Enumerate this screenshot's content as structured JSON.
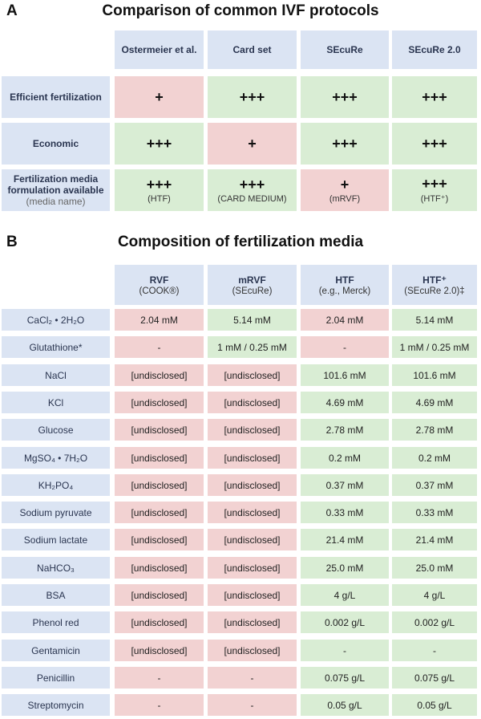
{
  "panel_a": {
    "letter": "A",
    "title": "Comparison of common IVF protocols",
    "columns": [
      "Ostermeier et al.",
      "Card set",
      "SEcuRe",
      "SEcuRe 2.0"
    ],
    "rows": [
      {
        "label": "Efficient fertilization",
        "cells": [
          {
            "mark": "+",
            "media": "",
            "color": "red"
          },
          {
            "mark": "+++",
            "media": "",
            "color": "green"
          },
          {
            "mark": "+++",
            "media": "",
            "color": "green"
          },
          {
            "mark": "+++",
            "media": "",
            "color": "green"
          }
        ]
      },
      {
        "label": "Economic",
        "cells": [
          {
            "mark": "+++",
            "media": "",
            "color": "green"
          },
          {
            "mark": "+",
            "media": "",
            "color": "red"
          },
          {
            "mark": "+++",
            "media": "",
            "color": "green"
          },
          {
            "mark": "+++",
            "media": "",
            "color": "green"
          }
        ]
      },
      {
        "label": "Fertilization media formulation available",
        "label_sub": "(media name)",
        "cells": [
          {
            "mark": "+++",
            "media": "(HTF)",
            "color": "green"
          },
          {
            "mark": "+++",
            "media": "(CARD MEDIUM)",
            "color": "green"
          },
          {
            "mark": "+",
            "media": "(mRVF)",
            "color": "red"
          },
          {
            "mark": "+++",
            "media": "(HTF⁺)",
            "color": "green"
          }
        ]
      }
    ]
  },
  "panel_b": {
    "letter": "B",
    "title": "Composition of fertilization media",
    "columns": [
      {
        "name": "RVF",
        "sub": "(COOK®)"
      },
      {
        "name": "mRVF",
        "sub": "(SEcuRe)"
      },
      {
        "name": "HTF",
        "sub": "(e.g., Merck)"
      },
      {
        "name": "HTF⁺",
        "sub": "(SEcuRe 2.0)‡"
      }
    ],
    "rows": [
      {
        "label": "CaCl₂ • 2H₂O",
        "cells": [
          [
            "2.04 mM",
            "red"
          ],
          [
            "5.14 mM",
            "green"
          ],
          [
            "2.04 mM",
            "red"
          ],
          [
            "5.14 mM",
            "green"
          ]
        ]
      },
      {
        "label": "Glutathione*",
        "cells": [
          [
            "-",
            "red"
          ],
          [
            "1 mM / 0.25 mM",
            "green"
          ],
          [
            "-",
            "red"
          ],
          [
            "1 mM / 0.25 mM",
            "green"
          ]
        ]
      },
      {
        "label": "NaCl",
        "cells": [
          [
            "[undisclosed]",
            "red"
          ],
          [
            "[undisclosed]",
            "red"
          ],
          [
            "101.6 mM",
            "green"
          ],
          [
            "101.6 mM",
            "green"
          ]
        ]
      },
      {
        "label": "KCl",
        "cells": [
          [
            "[undisclosed]",
            "red"
          ],
          [
            "[undisclosed]",
            "red"
          ],
          [
            "4.69 mM",
            "green"
          ],
          [
            "4.69 mM",
            "green"
          ]
        ]
      },
      {
        "label": "Glucose",
        "cells": [
          [
            "[undisclosed]",
            "red"
          ],
          [
            "[undisclosed]",
            "red"
          ],
          [
            "2.78 mM",
            "green"
          ],
          [
            "2.78 mM",
            "green"
          ]
        ]
      },
      {
        "label": "MgSO₄ • 7H₂O",
        "cells": [
          [
            "[undisclosed]",
            "red"
          ],
          [
            "[undisclosed]",
            "red"
          ],
          [
            "0.2 mM",
            "green"
          ],
          [
            "0.2  mM",
            "green"
          ]
        ]
      },
      {
        "label": "KH₂PO₄",
        "cells": [
          [
            "[undisclosed]",
            "red"
          ],
          [
            "[undisclosed]",
            "red"
          ],
          [
            "0.37 mM",
            "green"
          ],
          [
            "0.37 mM",
            "green"
          ]
        ]
      },
      {
        "label": "Sodium pyruvate",
        "cells": [
          [
            "[undisclosed]",
            "red"
          ],
          [
            "[undisclosed]",
            "red"
          ],
          [
            "0.33 mM",
            "green"
          ],
          [
            "0.33 mM",
            "green"
          ]
        ]
      },
      {
        "label": "Sodium lactate",
        "cells": [
          [
            "[undisclosed]",
            "red"
          ],
          [
            "[undisclosed]",
            "red"
          ],
          [
            "21.4 mM",
            "green"
          ],
          [
            "21.4 mM",
            "green"
          ]
        ]
      },
      {
        "label": "NaHCO₃",
        "cells": [
          [
            "[undisclosed]",
            "red"
          ],
          [
            "[undisclosed]",
            "red"
          ],
          [
            "25.0 mM",
            "green"
          ],
          [
            "25.0 mM",
            "green"
          ]
        ]
      },
      {
        "label": "BSA",
        "cells": [
          [
            "[undisclosed]",
            "red"
          ],
          [
            "[undisclosed]",
            "red"
          ],
          [
            "4 g/L",
            "green"
          ],
          [
            "4 g/L",
            "green"
          ]
        ]
      },
      {
        "label": "Phenol red",
        "cells": [
          [
            "[undisclosed]",
            "red"
          ],
          [
            "[undisclosed]",
            "red"
          ],
          [
            "0.002 g/L",
            "green"
          ],
          [
            "0.002 g/L",
            "green"
          ]
        ]
      },
      {
        "label": "Gentamicin",
        "cells": [
          [
            "[undisclosed]",
            "red"
          ],
          [
            "[undisclosed]",
            "red"
          ],
          [
            "-",
            "green"
          ],
          [
            "-",
            "green"
          ]
        ]
      },
      {
        "label": "Penicillin",
        "cells": [
          [
            "-",
            "red"
          ],
          [
            "-",
            "red"
          ],
          [
            "0.075 g/L",
            "green"
          ],
          [
            "0.075 g/L",
            "green"
          ]
        ]
      },
      {
        "label": "Streptomycin",
        "cells": [
          [
            "-",
            "red"
          ],
          [
            "-",
            "red"
          ],
          [
            "0.05 g/L",
            "green"
          ],
          [
            "0.05 g/L",
            "green"
          ]
        ]
      }
    ]
  },
  "colors": {
    "header": "#dbe4f3",
    "negative": "#f2d2d2",
    "positive": "#d9edd4"
  }
}
